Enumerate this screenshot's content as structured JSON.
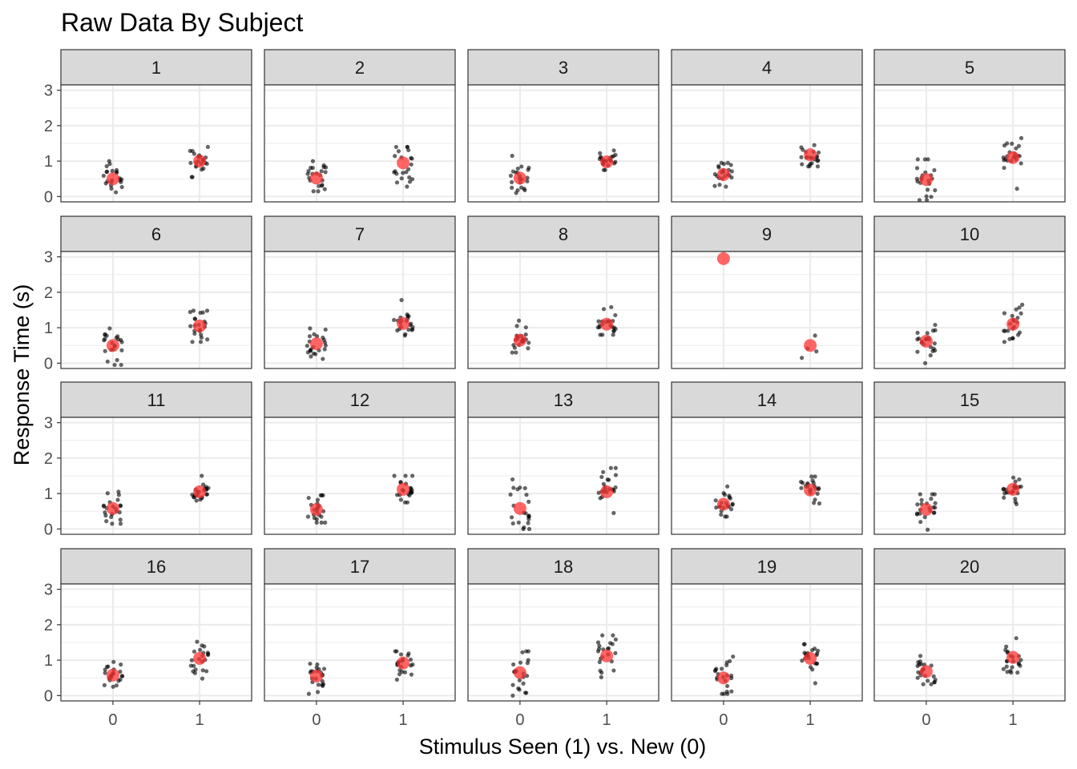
{
  "chart_data": {
    "type": "scatter",
    "title": "Raw Data By Subject",
    "xlabel": "Stimulus Seen (1) vs. New (0)",
    "ylabel": "Response Time (s)",
    "x_ticks": [
      "0",
      "1"
    ],
    "y_ticks": [
      "0",
      "1",
      "2",
      "3"
    ],
    "ylim": [
      -0.15,
      3.15
    ],
    "xlim": [
      -0.6,
      1.6
    ],
    "grid": true,
    "layout": {
      "rows": 4,
      "cols": 5
    },
    "colors": {
      "point": "#000000",
      "mean": "#ff3333",
      "strip": "#d9d9d9",
      "grid": "#ebebeb",
      "panel_border": "#333333"
    },
    "panels": [
      {
        "label": "1",
        "mean_new": 0.5,
        "mean_seen": 1.0,
        "min_new": 0.12,
        "max_new": 1.0,
        "min_seen": 0.55,
        "max_seen": 1.4,
        "n": 22
      },
      {
        "label": "2",
        "mean_new": 0.52,
        "mean_seen": 0.95,
        "min_new": 0.15,
        "max_new": 1.0,
        "min_seen": 0.28,
        "max_seen": 1.4,
        "n": 22
      },
      {
        "label": "3",
        "mean_new": 0.52,
        "mean_seen": 0.98,
        "min_new": 0.1,
        "max_new": 1.15,
        "min_seen": 0.75,
        "max_seen": 1.3,
        "n": 22
      },
      {
        "label": "4",
        "mean_new": 0.62,
        "mean_seen": 1.18,
        "min_new": 0.28,
        "max_new": 0.95,
        "min_seen": 0.85,
        "max_seen": 1.45,
        "n": 22
      },
      {
        "label": "5",
        "mean_new": 0.48,
        "mean_seen": 1.1,
        "min_new": -0.1,
        "max_new": 1.05,
        "min_seen": 0.22,
        "max_seen": 1.65,
        "n": 22
      },
      {
        "label": "6",
        "mean_new": 0.5,
        "mean_seen": 1.05,
        "min_new": -0.05,
        "max_new": 0.98,
        "min_seen": 0.6,
        "max_seen": 1.48,
        "n": 22
      },
      {
        "label": "7",
        "mean_new": 0.55,
        "mean_seen": 1.12,
        "min_new": 0.12,
        "max_new": 0.98,
        "min_seen": 0.78,
        "max_seen": 1.78,
        "n": 22
      },
      {
        "label": "8",
        "mean_new": 0.65,
        "mean_seen": 1.1,
        "min_new": 0.3,
        "max_new": 1.2,
        "min_seen": 0.8,
        "max_seen": 1.58,
        "n": 22
      },
      {
        "label": "9",
        "mean_new": 2.95,
        "mean_seen": 0.5,
        "min_new": 2.95,
        "max_new": 2.95,
        "min_seen": 0.15,
        "max_seen": 0.78,
        "n": 4
      },
      {
        "label": "10",
        "mean_new": 0.62,
        "mean_seen": 1.1,
        "min_new": 0.0,
        "max_new": 1.08,
        "min_seen": 0.6,
        "max_seen": 1.65,
        "n": 22
      },
      {
        "label": "11",
        "mean_new": 0.58,
        "mean_seen": 1.05,
        "min_new": 0.15,
        "max_new": 1.05,
        "min_seen": 0.8,
        "max_seen": 1.5,
        "n": 22
      },
      {
        "label": "12",
        "mean_new": 0.55,
        "mean_seen": 1.12,
        "min_new": 0.18,
        "max_new": 0.95,
        "min_seen": 0.75,
        "max_seen": 1.5,
        "n": 22
      },
      {
        "label": "13",
        "mean_new": 0.58,
        "mean_seen": 1.05,
        "min_new": 0.0,
        "max_new": 1.4,
        "min_seen": 0.45,
        "max_seen": 1.72,
        "n": 22
      },
      {
        "label": "14",
        "mean_new": 0.7,
        "mean_seen": 1.1,
        "min_new": 0.35,
        "max_new": 1.2,
        "min_seen": 0.72,
        "max_seen": 1.48,
        "n": 22
      },
      {
        "label": "15",
        "mean_new": 0.55,
        "mean_seen": 1.12,
        "min_new": -0.02,
        "max_new": 0.98,
        "min_seen": 0.7,
        "max_seen": 1.45,
        "n": 22
      },
      {
        "label": "16",
        "mean_new": 0.58,
        "mean_seen": 1.05,
        "min_new": 0.25,
        "max_new": 0.95,
        "min_seen": 0.48,
        "max_seen": 1.52,
        "n": 22
      },
      {
        "label": "17",
        "mean_new": 0.55,
        "mean_seen": 0.92,
        "min_new": 0.05,
        "max_new": 0.9,
        "min_seen": 0.45,
        "max_seen": 1.25,
        "n": 22
      },
      {
        "label": "18",
        "mean_new": 0.65,
        "mean_seen": 1.12,
        "min_new": 0.0,
        "max_new": 1.25,
        "min_seen": 0.52,
        "max_seen": 1.7,
        "n": 22
      },
      {
        "label": "19",
        "mean_new": 0.5,
        "mean_seen": 1.05,
        "min_new": 0.05,
        "max_new": 1.1,
        "min_seen": 0.35,
        "max_seen": 1.45,
        "n": 22
      },
      {
        "label": "20",
        "mean_new": 0.68,
        "mean_seen": 1.08,
        "min_new": 0.32,
        "max_new": 1.12,
        "min_seen": 0.65,
        "max_seen": 1.62,
        "n": 22
      }
    ]
  }
}
